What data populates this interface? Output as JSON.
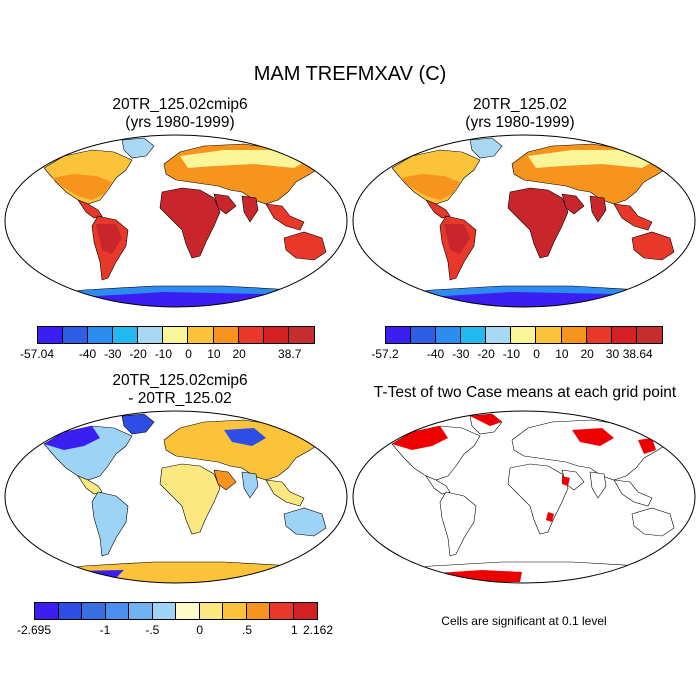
{
  "title": "MAM TREFMXAV (C)",
  "panels": {
    "case1": {
      "title_line1": "20TR_125.02cmip6",
      "title_line2": "(yrs 1980-1999)"
    },
    "case2": {
      "title_line1": "20TR_125.02",
      "title_line2": "(yrs 1980-1999)"
    },
    "diff": {
      "title_line1": "20TR_125.02cmip6",
      "title_line2": "- 20TR_125.02"
    },
    "ttest": {
      "title_line1": "T-Test of two Case means at each grid point",
      "note": "Cells are significant at 0.1 level"
    }
  },
  "colorbars": {
    "case1": {
      "colors": [
        "#3b1ef2",
        "#2e5de6",
        "#2c8cf0",
        "#22b8f0",
        "#a9d8f2",
        "#fbf59a",
        "#fbc33a",
        "#f7941d",
        "#e8382a",
        "#d42023",
        "#c52e2e"
      ],
      "ticks": [
        {
          "label": "-57.04",
          "idx": 0
        },
        {
          "label": "-40",
          "idx": 2
        },
        {
          "label": "-30",
          "idx": 3
        },
        {
          "label": "-20",
          "idx": 4
        },
        {
          "label": "-10",
          "idx": 5
        },
        {
          "label": "0",
          "idx": 6
        },
        {
          "label": "10",
          "idx": 7
        },
        {
          "label": "20",
          "idx": 8
        },
        {
          "label": "38.7",
          "idx": 10
        }
      ]
    },
    "case2": {
      "colors": [
        "#3b1ef2",
        "#2e5de6",
        "#2c8cf0",
        "#22b8f0",
        "#a9d8f2",
        "#fbf59a",
        "#fbc33a",
        "#f7941d",
        "#e8382a",
        "#d42023",
        "#c52e2e"
      ],
      "ticks": [
        {
          "label": "-57.2",
          "idx": 0
        },
        {
          "label": "-40",
          "idx": 2
        },
        {
          "label": "-30",
          "idx": 3
        },
        {
          "label": "-20",
          "idx": 4
        },
        {
          "label": "-10",
          "idx": 5
        },
        {
          "label": "0",
          "idx": 6
        },
        {
          "label": "10",
          "idx": 7
        },
        {
          "label": "20",
          "idx": 8
        },
        {
          "label": "30",
          "idx": 9
        },
        {
          "label": "38.64",
          "idx": 10
        }
      ]
    },
    "diff": {
      "colors": [
        "#3b1ef2",
        "#2e4ce6",
        "#3a6fe0",
        "#4b8ff0",
        "#6fb2f2",
        "#9dd3f5",
        "#fffbc8",
        "#fbe880",
        "#fbc33a",
        "#f7941d",
        "#e8382a",
        "#d42023"
      ],
      "ticks": [
        {
          "label": "-2.695",
          "idx": 0
        },
        {
          "label": "-1",
          "idx": 3
        },
        {
          "label": "-.5",
          "idx": 5
        },
        {
          "label": "0",
          "idx": 7
        },
        {
          "label": ".5",
          "idx": 9
        },
        {
          "label": "1",
          "idx": 11
        },
        {
          "label": "2.162",
          "idx": 12
        }
      ]
    }
  },
  "map_colors": {
    "hot": "#c8262c",
    "warm": "#e8382a",
    "mid": "#f7941d",
    "mild": "#fbc33a",
    "cool": "#fbf59a",
    "cold": "#a9d8f2",
    "icy": "#2c8cf0",
    "frozen": "#3b1ef2",
    "signif": "#ee0000"
  }
}
